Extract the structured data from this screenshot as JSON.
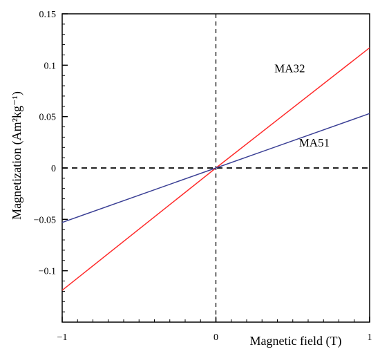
{
  "chart_data": {
    "type": "line",
    "title": "",
    "xlabel": "Magnetic field (T)",
    "ylabel": "Magnetization (Am²kg⁻¹)",
    "xlim": [
      -1,
      1
    ],
    "ylim": [
      -0.15,
      0.15
    ],
    "x_ticks": [
      -1,
      0,
      1
    ],
    "x_tick_labels": [
      "−1",
      "0",
      "1"
    ],
    "y_ticks": [
      -0.1,
      -0.05,
      0,
      0.05,
      0.1,
      0.15
    ],
    "y_tick_labels": [
      "−0.1",
      "−0.05",
      "0",
      "0.05",
      "0.1",
      "0.15"
    ],
    "grid": false,
    "reference_lines": [
      {
        "axis": "x",
        "value": 0,
        "style": "dashed"
      },
      {
        "axis": "y",
        "value": 0,
        "style": "dashed"
      }
    ],
    "series": [
      {
        "name": "MA32",
        "color": "#ff2a2a",
        "x": [
          -1,
          0,
          1
        ],
        "y": [
          -0.119,
          0,
          0.117
        ]
      },
      {
        "name": "MA51",
        "color": "#3a3f95",
        "x": [
          -1,
          0,
          1
        ],
        "y": [
          -0.053,
          0,
          0.053
        ]
      }
    ]
  }
}
